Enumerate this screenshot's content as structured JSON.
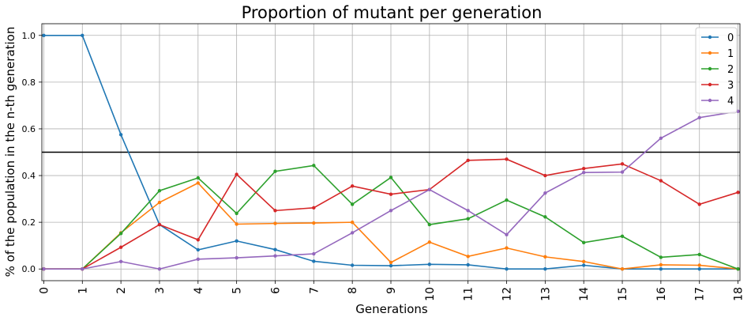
{
  "chart_data": {
    "type": "line",
    "title": "Proportion of mutant per generation",
    "xlabel": "Generations",
    "ylabel": "% of the population in the n-th generation",
    "x": [
      0,
      1,
      2,
      3,
      4,
      5,
      6,
      7,
      8,
      9,
      10,
      11,
      12,
      13,
      14,
      15,
      16,
      17,
      18
    ],
    "xlim": [
      -0.05,
      18.05
    ],
    "ylim": [
      -0.05,
      1.05
    ],
    "yticks": [
      0.0,
      0.2,
      0.4,
      0.6,
      0.8,
      1.0
    ],
    "ytick_labels": [
      "0.0",
      "0.2",
      "0.4",
      "0.6",
      "0.8",
      "1.0"
    ],
    "xtick_labels": [
      "0",
      "1",
      "2",
      "3",
      "4",
      "5",
      "6",
      "7",
      "8",
      "9",
      "10",
      "11",
      "12",
      "13",
      "14",
      "15",
      "16",
      "17",
      "18"
    ],
    "grid": true,
    "legend_position": "top-right",
    "hline": 0.5,
    "series": [
      {
        "name": "0",
        "color": "#1f77b4",
        "values": [
          1.0,
          1.0,
          0.575,
          0.19,
          0.082,
          0.12,
          0.083,
          0.033,
          0.016,
          0.014,
          0.02,
          0.018,
          0.0,
          0.0,
          0.016,
          0.0,
          0.0,
          0.0,
          0.0
        ]
      },
      {
        "name": "1",
        "color": "#ff7f0e",
        "values": [
          0.0,
          0.0,
          0.155,
          0.285,
          0.368,
          0.192,
          0.195,
          0.197,
          0.2,
          0.028,
          0.115,
          0.054,
          0.09,
          0.052,
          0.032,
          0.0,
          0.018,
          0.016,
          0.0
        ]
      },
      {
        "name": "2",
        "color": "#2ca02c",
        "values": [
          0.0,
          0.0,
          0.152,
          0.335,
          0.39,
          0.238,
          0.418,
          0.443,
          0.277,
          0.392,
          0.19,
          0.215,
          0.295,
          0.223,
          0.113,
          0.14,
          0.05,
          0.062,
          0.0
        ]
      },
      {
        "name": "3",
        "color": "#d62728",
        "values": [
          0.0,
          0.0,
          0.093,
          0.19,
          0.125,
          0.405,
          0.25,
          0.262,
          0.355,
          0.32,
          0.34,
          0.465,
          0.47,
          0.4,
          0.43,
          0.45,
          0.378,
          0.277,
          0.328
        ]
      },
      {
        "name": "4",
        "color": "#9467bd",
        "values": [
          0.0,
          0.0,
          0.032,
          0.0,
          0.042,
          0.048,
          0.056,
          0.065,
          0.155,
          0.25,
          0.34,
          0.25,
          0.147,
          0.325,
          0.413,
          0.415,
          0.56,
          0.648,
          0.675
        ]
      }
    ]
  }
}
